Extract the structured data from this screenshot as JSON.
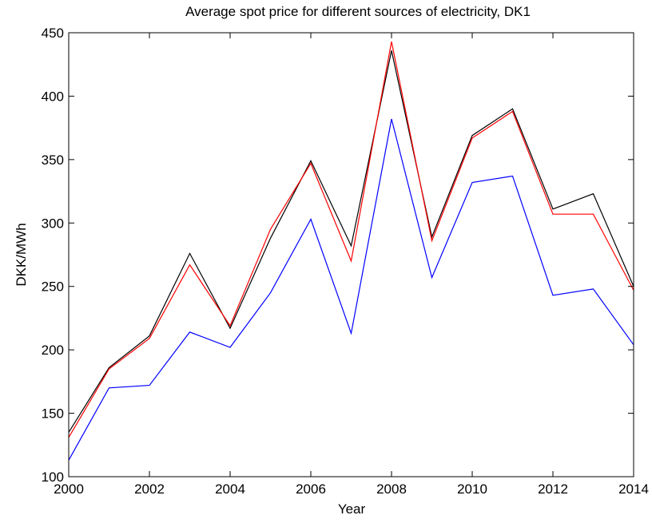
{
  "chart_data": {
    "type": "line",
    "title": "Average spot price for different sources of electricity, DK1",
    "xlabel": "Year",
    "ylabel": "DKK/MWh",
    "xlim": [
      2000,
      2014
    ],
    "ylim": [
      100,
      450
    ],
    "x_ticks": [
      2000,
      2002,
      2004,
      2006,
      2008,
      2010,
      2012,
      2014
    ],
    "y_ticks": [
      100,
      150,
      200,
      250,
      300,
      350,
      400,
      450
    ],
    "grid": false,
    "legend": "none",
    "x": [
      2000,
      2001,
      2002,
      2003,
      2004,
      2005,
      2006,
      2007,
      2008,
      2009,
      2010,
      2011,
      2012,
      2013,
      2014
    ],
    "series": [
      {
        "color": "#000000",
        "values": [
          135,
          186,
          211,
          276,
          217,
          288,
          349,
          282,
          436,
          289,
          369,
          390,
          311,
          323,
          250
        ]
      },
      {
        "color": "#ff0000",
        "values": [
          131,
          185,
          209,
          267,
          219,
          295,
          347,
          270,
          443,
          286,
          367,
          388,
          307,
          307,
          247
        ]
      },
      {
        "color": "#0000ff",
        "values": [
          113,
          170,
          172,
          214,
          202,
          245,
          303,
          213,
          382,
          257,
          332,
          337,
          243,
          248,
          204
        ]
      }
    ]
  }
}
